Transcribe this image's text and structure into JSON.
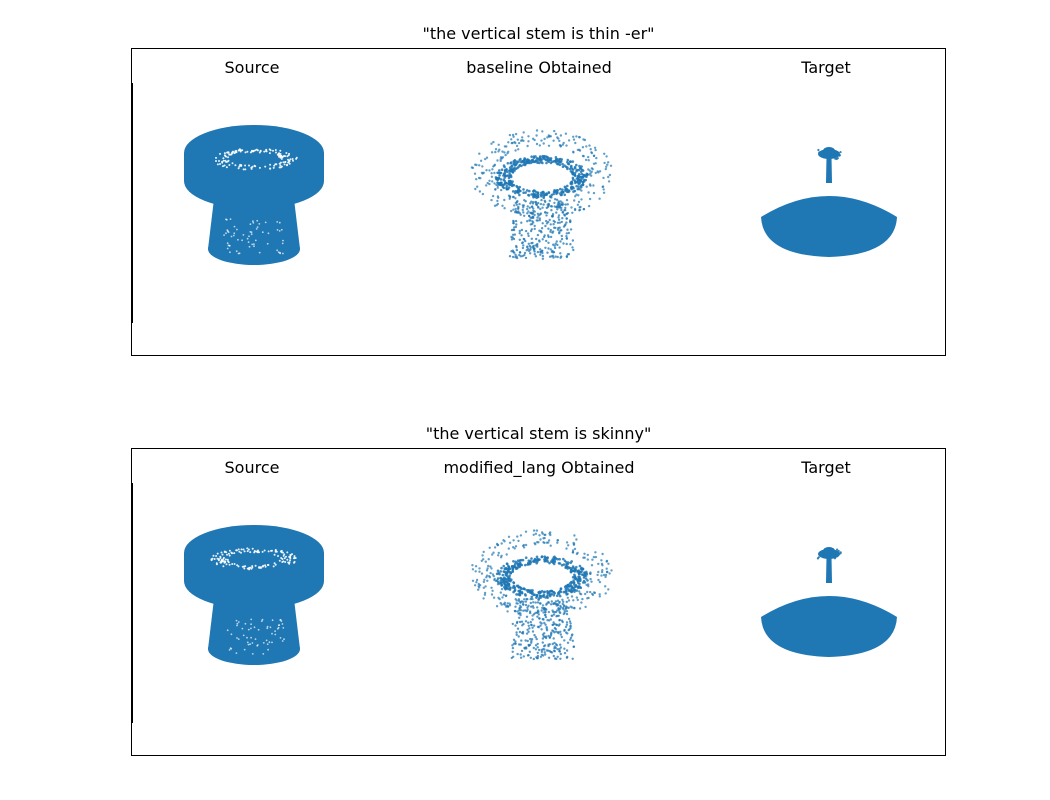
{
  "rows": [
    {
      "title": "\"the vertical stem is thin -er\"",
      "labels": {
        "source": "Source",
        "obtained": "baseline Obtained",
        "target": "Target"
      }
    },
    {
      "title": "\"the vertical stem is skinny\"",
      "labels": {
        "source": "Source",
        "obtained": "modified_lang Obtained",
        "target": "Target"
      }
    }
  ],
  "colors": {
    "points": "#1f77b4"
  }
}
